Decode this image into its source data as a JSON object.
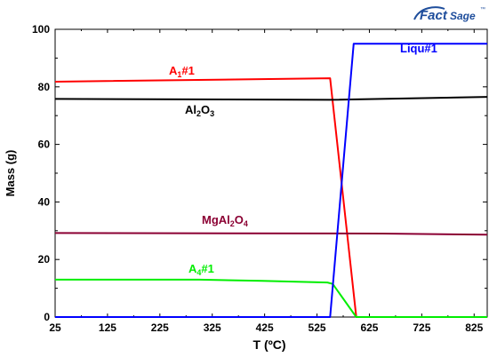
{
  "logo": {
    "text_a": "Fact",
    "text_b": "Sage",
    "tm": "™",
    "color": "#1f4e9c"
  },
  "chart_data": {
    "type": "line",
    "title": "",
    "xlabel": "T (ºC)",
    "ylabel": "Mass (g)",
    "xlim": [
      25,
      850
    ],
    "ylim": [
      0,
      100
    ],
    "x_ticks": [
      25,
      125,
      225,
      325,
      425,
      525,
      625,
      725,
      825
    ],
    "y_ticks": [
      0,
      20,
      40,
      60,
      80,
      100
    ],
    "grid": false,
    "series": [
      {
        "name": "A1#1",
        "label_main": "A",
        "label_sub": "1",
        "label_tail": "#1",
        "color": "#ff0000",
        "points": [
          [
            25,
            81.8
          ],
          [
            550,
            83.0
          ],
          [
            600,
            0
          ],
          [
            850,
            0
          ]
        ]
      },
      {
        "name": "Al2O3",
        "label_main": "Al",
        "label_sub": "2",
        "label_tail": "O",
        "label_sub2": "3",
        "color": "#000000",
        "points": [
          [
            25,
            75.8
          ],
          [
            550,
            75.5
          ],
          [
            850,
            76.5
          ]
        ]
      },
      {
        "name": "MgAl2O4",
        "label_main": "MgAl",
        "label_sub": "2",
        "label_tail": "O",
        "label_sub2": "4",
        "color": "#8b0033",
        "points": [
          [
            25,
            29.2
          ],
          [
            650,
            29.0
          ],
          [
            850,
            28.6
          ]
        ]
      },
      {
        "name": "A4#1",
        "label_main": "A",
        "label_sub": "4",
        "label_tail": "#1",
        "color": "#00ee00",
        "points": [
          [
            25,
            13.0
          ],
          [
            300,
            13.0
          ],
          [
            420,
            12.6
          ],
          [
            545,
            12.0
          ],
          [
            555,
            11.5
          ],
          [
            600,
            0
          ],
          [
            850,
            0
          ]
        ]
      },
      {
        "name": "Liqu#1",
        "label_main": "Liqu#1",
        "color": "#0000ff",
        "points": [
          [
            25,
            0
          ],
          [
            550,
            0
          ],
          [
            595,
            95
          ],
          [
            850,
            95
          ]
        ]
      }
    ]
  }
}
